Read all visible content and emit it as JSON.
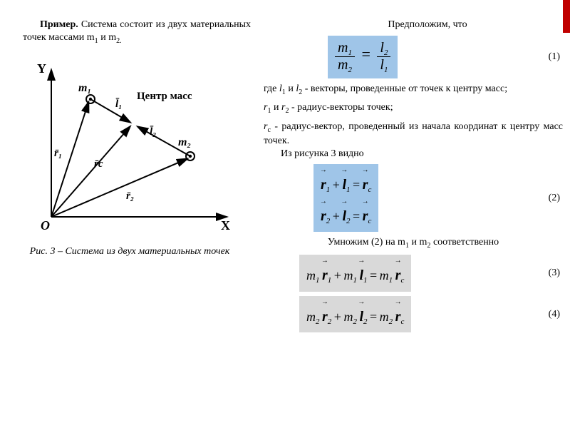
{
  "left": {
    "intro_html": "<b>Пример.</b> Система состоит из двух материальных точек массами m<sub>1</sub> и m<sub>2.</sub>",
    "caption": "Рис. 3 – Система из двух материальных точек",
    "diagram": {
      "origin_label": "O",
      "x_axis_label": "X",
      "y_axis_label": "Y",
      "m1_label": "m₁",
      "m2_label": "m₂",
      "center_label": "Центр масс",
      "r1_label": "r̄₁",
      "r2_label": "r̄₂",
      "rc_label": "r̄c",
      "l1_label": "l̄₁",
      "l2_label": "l̄₂"
    }
  },
  "right": {
    "assume": "Предположим, что",
    "eq1": {
      "lhs_num": "m",
      "lhs_num_sub": "1",
      "lhs_den": "m",
      "lhs_den_sub": "2",
      "rhs_num": "l",
      "rhs_num_sub": "2",
      "rhs_den": "l",
      "rhs_den_sub": "1",
      "n": "(1)"
    },
    "where1_html": "где <i>l</i><sub>1</sub> и <i>l</i><sub>2</sub>  - векторы, проведенные от точек к центру масс;",
    "where2_html": " <i>r</i><sub>1</sub> и <i>r</i><sub>2</sub> - радиус-векторы точек;",
    "where3_html": "<i>r</i><sub>c</sub> - радиус-вектор, проведенный из начала координат к центру масс точек.",
    "from_fig": "Из рисунка 3 видно",
    "eq2": {
      "n": "(2)"
    },
    "mult_html": "Умножим (2) на m<sub>1</sub> и m<sub>2</sub> соответственно",
    "eq3": {
      "n": "(3)"
    },
    "eq4": {
      "n": "(4)"
    }
  },
  "style": {
    "blue": "#9fc5e8",
    "gray": "#d9d9d9",
    "accent": "#c00000",
    "font": "Times New Roman",
    "base_size_pt": 11
  }
}
